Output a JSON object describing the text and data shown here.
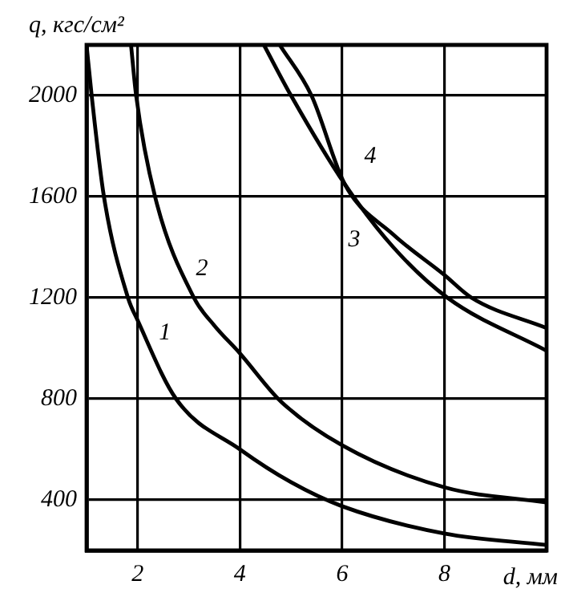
{
  "chart_data": {
    "type": "line",
    "xlabel": "d, мм",
    "ylabel": "q, кгс/см²",
    "xlim": [
      1,
      10
    ],
    "ylim": [
      200,
      2200
    ],
    "xticks": [
      2,
      4,
      6,
      8
    ],
    "yticks": [
      400,
      800,
      1200,
      1600,
      2000
    ],
    "grid": true,
    "legend": false,
    "marker": "none",
    "line_style": "solid",
    "series": [
      {
        "name": "1",
        "color": "#000000",
        "x": [
          1.0,
          1.1,
          1.34,
          1.81,
          2,
          2.75,
          4,
          5,
          6,
          8,
          10
        ],
        "values": [
          2200,
          2000,
          1600,
          1200,
          1110,
          800,
          600,
          470,
          375,
          267,
          222
        ]
      },
      {
        "name": "2",
        "color": "#000000",
        "x": [
          1.87,
          1.97,
          2.34,
          3.1,
          3.5,
          4,
          4.8,
          6,
          8,
          10
        ],
        "values": [
          2200,
          2000,
          1600,
          1200,
          1090,
          980,
          790,
          616,
          450,
          390
        ]
      },
      {
        "name": "3",
        "color": "#000000",
        "x": [
          4.47,
          5.0,
          6.05,
          7,
          8.06,
          10
        ],
        "values": [
          2200,
          2000,
          1650,
          1400,
          1200,
          990
        ]
      },
      {
        "name": "4",
        "color": "#000000",
        "x": [
          4.78,
          5.4,
          6.05,
          7,
          8,
          8.53,
          10
        ],
        "values": [
          2200,
          2000,
          1650,
          1450,
          1290,
          1200,
          1080
        ]
      }
    ]
  }
}
